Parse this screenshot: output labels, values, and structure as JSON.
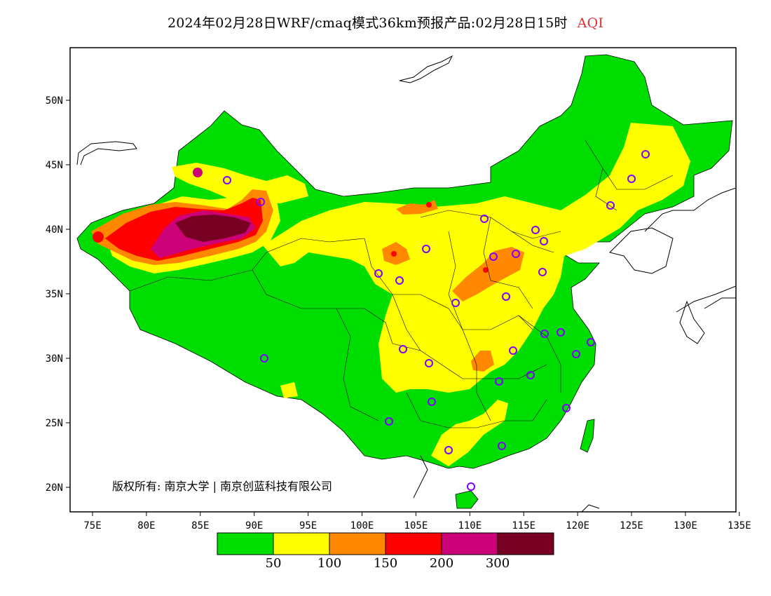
{
  "title": {
    "main": "2024年02月28日WRF/cmaq模式36km预报产品:02月28日15时",
    "product": "AQI"
  },
  "axes": {
    "x_ticks": [
      "75E",
      "80E",
      "85E",
      "90E",
      "95E",
      "100E",
      "105E",
      "110E",
      "115E",
      "120E",
      "125E",
      "130E",
      "135E"
    ],
    "y_ticks": [
      "50N",
      "45N",
      "40N",
      "35N",
      "30N",
      "25N",
      "20N"
    ]
  },
  "copyright": "版权所有: 南京大学 | 南京创蓝科技有限公司",
  "legend": {
    "colors": [
      "#00dd00",
      "#ffff00",
      "#ff8800",
      "#ff0000",
      "#cc0077",
      "#770022"
    ],
    "labels": [
      "50",
      "100",
      "150",
      "200",
      "300"
    ]
  },
  "map_colors": {
    "green": "#00dd00",
    "yellow": "#ffff00",
    "orange": "#ff8800",
    "red": "#ff0000",
    "purple": "#cc0077",
    "maroon": "#770022",
    "station": "#7f00ff"
  }
}
